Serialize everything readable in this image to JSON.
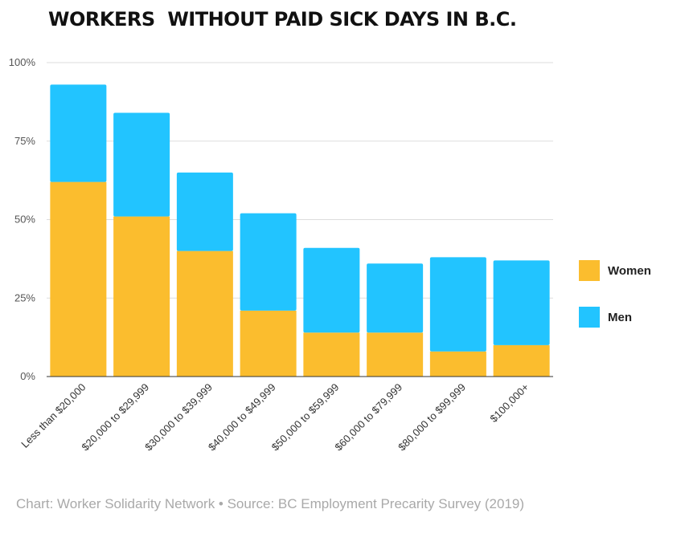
{
  "title": "WORKERS  WITHOUT PAID SICK DAYS IN B.C.",
  "source": "Chart: Worker Solidarity Network • Source: BC Employment Precarity Survey (2019)",
  "colors": {
    "women": "#fbbd2e",
    "men": "#22c4ff",
    "grid": "#dddddd",
    "axis": "#333333"
  },
  "chart_data": {
    "type": "bar",
    "stacked": true,
    "categories": [
      "Less than $20,000",
      "$20,000 to $29,999",
      "$30,000 to $39,999",
      "$40,000 to $49,999",
      "$50,000 to $59,999",
      "$60,000 to $79,999",
      "$80,000 to $99,999",
      "$100,000+"
    ],
    "series": [
      {
        "name": "Women",
        "values": [
          62,
          51,
          40,
          21,
          14,
          14,
          8,
          10
        ]
      },
      {
        "name": "Men",
        "values": [
          31,
          33,
          25,
          31,
          27,
          22,
          30,
          27
        ]
      }
    ],
    "ylim": [
      0,
      100
    ],
    "yticks": [
      0,
      25,
      50,
      75,
      100
    ],
    "ytick_labels": [
      "0%",
      "25%",
      "50%",
      "75%",
      "100%"
    ],
    "grid": true,
    "legend_position": "right"
  }
}
